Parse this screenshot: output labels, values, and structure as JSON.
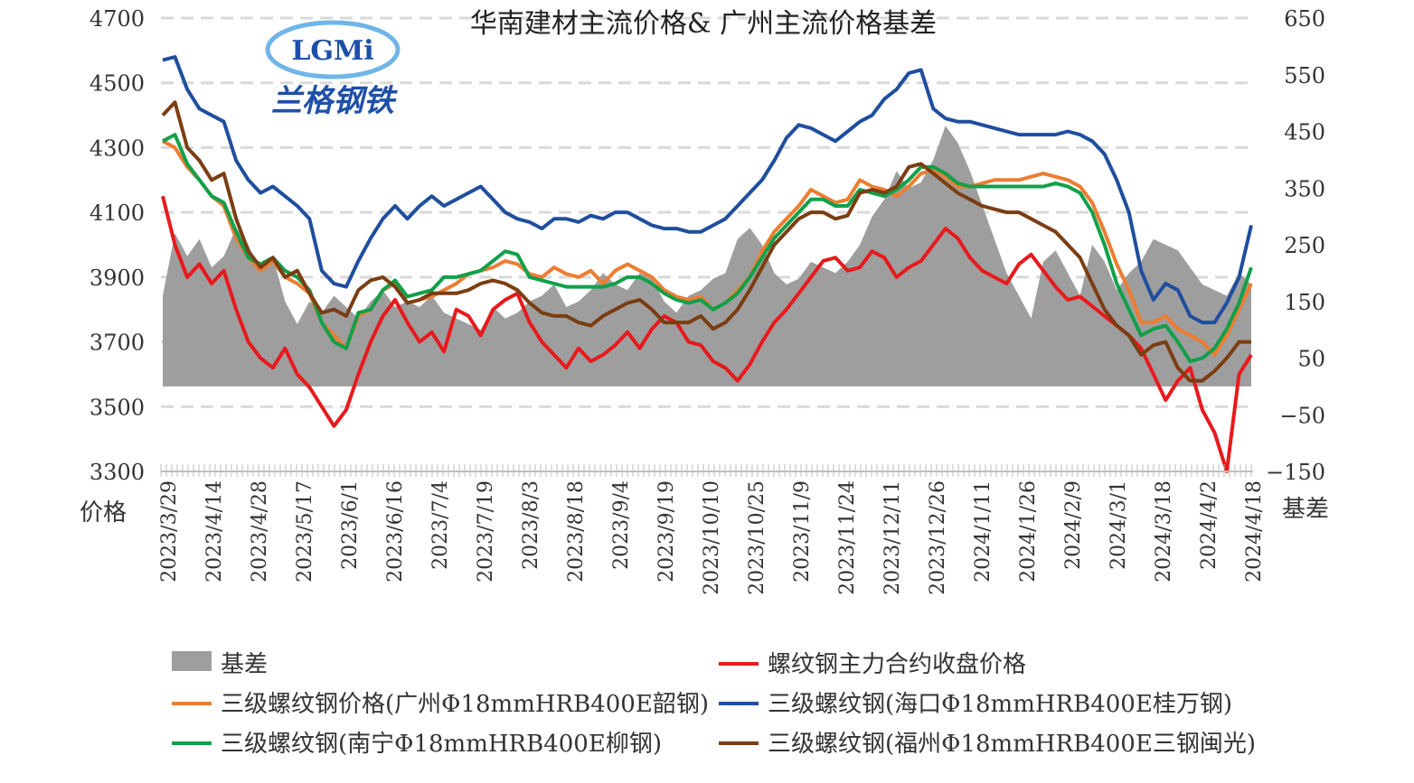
{
  "chart_data": {
    "type": "line",
    "title": "华南建材主流价格& 广州主流价格基差",
    "logo": {
      "text": "LGMi",
      "subtitle": "兰格钢铁"
    },
    "y_left": {
      "label": "价格",
      "min": 3300,
      "max": 4700,
      "ticks": [
        3300,
        3500,
        3700,
        3900,
        4100,
        4300,
        4500,
        4700
      ]
    },
    "y_right": {
      "label": "基差",
      "min": -150,
      "max": 650,
      "ticks": [
        -150,
        -50,
        50,
        150,
        250,
        350,
        450,
        550,
        650
      ],
      "tick_labels": [
        "−150",
        "−50",
        "50",
        "150",
        "250",
        "350",
        "450",
        "550",
        "650"
      ]
    },
    "x_tick_labels": [
      "2023/3/29",
      "2023/4/14",
      "2023/4/28",
      "2023/5/17",
      "2023/6/1",
      "2023/6/16",
      "2023/7/4",
      "2023/7/19",
      "2023/8/3",
      "2023/8/18",
      "2023/9/4",
      "2023/9/19",
      "2023/10/10",
      "2023/10/25",
      "2023/11/9",
      "2023/11/24",
      "2023/12/11",
      "2023/12/26",
      "2024/1/11",
      "2024/1/26",
      "2024/2/9",
      "2024/3/1",
      "2024/3/18",
      "2024/4/2",
      "2024/4/18"
    ],
    "grid": "horizontal-dashed",
    "legend_position": "bottom",
    "series": [
      {
        "name": "基差",
        "kind": "area",
        "axis": "right",
        "color": "#9e9e9e",
        "values": [
          160,
          270,
          230,
          260,
          210,
          230,
          280,
          250,
          200,
          230,
          150,
          110,
          150,
          130,
          160,
          140,
          120,
          150,
          170,
          140,
          150,
          140,
          160,
          130,
          120,
          110,
          100,
          140,
          120,
          130,
          150,
          160,
          180,
          140,
          150,
          170,
          200,
          180,
          170,
          200,
          190,
          150,
          130,
          160,
          170,
          190,
          200,
          260,
          280,
          250,
          200,
          180,
          190,
          220,
          210,
          200,
          220,
          250,
          300,
          330,
          380,
          350,
          360,
          400,
          460,
          430,
          380,
          320,
          260,
          200,
          160,
          120,
          220,
          240,
          200,
          160,
          250,
          220,
          170,
          200,
          220,
          260,
          250,
          240,
          210,
          180,
          170,
          160,
          200,
          180
        ]
      },
      {
        "name": "螺纹钢主力合约收盘价格",
        "kind": "line",
        "axis": "left",
        "color": "#e8191c",
        "values": [
          4150,
          4000,
          3900,
          3940,
          3880,
          3920,
          3800,
          3700,
          3650,
          3620,
          3680,
          3600,
          3560,
          3500,
          3440,
          3490,
          3600,
          3700,
          3780,
          3830,
          3760,
          3700,
          3730,
          3670,
          3800,
          3780,
          3720,
          3800,
          3830,
          3850,
          3760,
          3700,
          3660,
          3620,
          3680,
          3640,
          3660,
          3690,
          3730,
          3680,
          3740,
          3780,
          3760,
          3700,
          3690,
          3640,
          3620,
          3580,
          3630,
          3700,
          3760,
          3800,
          3850,
          3900,
          3950,
          3960,
          3920,
          3930,
          3980,
          3960,
          3900,
          3930,
          3950,
          4000,
          4050,
          4020,
          3960,
          3920,
          3900,
          3880,
          3940,
          3970,
          3920,
          3870,
          3830,
          3840,
          3810,
          3780,
          3750,
          3720,
          3680,
          3600,
          3520,
          3580,
          3620,
          3490,
          3420,
          3300,
          3600,
          3660
        ]
      },
      {
        "name": "三级螺纹钢价格(广州Φ18mmHRB400E韶钢)",
        "kind": "line",
        "axis": "left",
        "color": "#ed7d31",
        "values": [
          4320,
          4300,
          4240,
          4200,
          4150,
          4120,
          4020,
          3960,
          3920,
          3950,
          3900,
          3880,
          3850,
          3760,
          3720,
          3680,
          3780,
          3800,
          3860,
          3880,
          3820,
          3830,
          3840,
          3860,
          3880,
          3910,
          3920,
          3930,
          3950,
          3940,
          3910,
          3900,
          3930,
          3910,
          3900,
          3920,
          3880,
          3920,
          3940,
          3920,
          3900,
          3860,
          3840,
          3830,
          3840,
          3800,
          3820,
          3860,
          3900,
          3980,
          4040,
          4080,
          4120,
          4170,
          4150,
          4130,
          4140,
          4200,
          4180,
          4170,
          4150,
          4180,
          4220,
          4230,
          4210,
          4180,
          4180,
          4190,
          4200,
          4200,
          4200,
          4210,
          4220,
          4210,
          4200,
          4180,
          4130,
          4040,
          3940,
          3860,
          3760,
          3760,
          3780,
          3740,
          3720,
          3700,
          3660,
          3720,
          3800,
          3880
        ]
      },
      {
        "name": "三级螺纹钢(海口Φ18mmHRB400E桂万钢)",
        "kind": "line",
        "axis": "left",
        "color": "#1f4e9f",
        "values": [
          4570,
          4580,
          4480,
          4420,
          4400,
          4380,
          4260,
          4200,
          4160,
          4180,
          4150,
          4120,
          4080,
          3920,
          3880,
          3870,
          3950,
          4020,
          4080,
          4120,
          4080,
          4120,
          4150,
          4120,
          4140,
          4160,
          4180,
          4140,
          4100,
          4080,
          4070,
          4050,
          4080,
          4080,
          4070,
          4090,
          4080,
          4100,
          4100,
          4080,
          4060,
          4050,
          4050,
          4040,
          4040,
          4060,
          4080,
          4120,
          4160,
          4200,
          4260,
          4330,
          4370,
          4360,
          4340,
          4320,
          4350,
          4380,
          4400,
          4450,
          4480,
          4530,
          4540,
          4420,
          4390,
          4380,
          4380,
          4370,
          4360,
          4350,
          4340,
          4340,
          4340,
          4340,
          4350,
          4340,
          4320,
          4280,
          4200,
          4100,
          3920,
          3830,
          3880,
          3860,
          3780,
          3760,
          3760,
          3820,
          3900,
          4060
        ]
      },
      {
        "name": "三级螺纹钢(南宁Φ18mmHRB400E柳钢)",
        "kind": "line",
        "axis": "left",
        "color": "#11a04a",
        "values": [
          4320,
          4340,
          4250,
          4200,
          4150,
          4130,
          4040,
          3960,
          3940,
          3960,
          3920,
          3900,
          3860,
          3760,
          3700,
          3680,
          3790,
          3800,
          3860,
          3890,
          3840,
          3850,
          3860,
          3900,
          3900,
          3910,
          3920,
          3950,
          3980,
          3970,
          3900,
          3890,
          3880,
          3870,
          3870,
          3870,
          3870,
          3880,
          3900,
          3900,
          3880,
          3850,
          3830,
          3820,
          3830,
          3800,
          3820,
          3850,
          3900,
          3960,
          4020,
          4060,
          4100,
          4140,
          4140,
          4120,
          4120,
          4170,
          4160,
          4150,
          4170,
          4200,
          4240,
          4240,
          4220,
          4190,
          4180,
          4180,
          4180,
          4180,
          4180,
          4180,
          4180,
          4190,
          4180,
          4160,
          4100,
          4000,
          3880,
          3800,
          3720,
          3740,
          3750,
          3700,
          3640,
          3650,
          3680,
          3740,
          3820,
          3930
        ]
      },
      {
        "name": "三级螺纹钢(福州Φ18mmHRB400E三钢闽光)",
        "kind": "line",
        "axis": "left",
        "color": "#7b3d12",
        "values": [
          4400,
          4440,
          4300,
          4260,
          4200,
          4220,
          4080,
          3980,
          3930,
          3960,
          3900,
          3920,
          3850,
          3790,
          3800,
          3780,
          3860,
          3890,
          3900,
          3870,
          3820,
          3830,
          3850,
          3850,
          3850,
          3860,
          3880,
          3890,
          3880,
          3860,
          3820,
          3790,
          3780,
          3780,
          3760,
          3750,
          3780,
          3800,
          3820,
          3830,
          3800,
          3760,
          3760,
          3760,
          3780,
          3740,
          3760,
          3800,
          3860,
          3930,
          4000,
          4040,
          4080,
          4100,
          4100,
          4080,
          4090,
          4160,
          4170,
          4160,
          4180,
          4240,
          4250,
          4220,
          4190,
          4160,
          4140,
          4120,
          4110,
          4100,
          4100,
          4080,
          4060,
          4040,
          4000,
          3960,
          3880,
          3800,
          3750,
          3720,
          3660,
          3690,
          3700,
          3620,
          3580,
          3580,
          3610,
          3650,
          3700,
          3700
        ]
      }
    ],
    "legend": [
      {
        "label": "基差",
        "series": 0
      },
      {
        "label": "螺纹钢主力合约收盘价格",
        "series": 1
      },
      {
        "label": "三级螺纹钢价格(广州Φ18mmHRB400E韶钢)",
        "series": 2
      },
      {
        "label": "三级螺纹钢(海口Φ18mmHRB400E桂万钢)",
        "series": 3
      },
      {
        "label": "三级螺纹钢(南宁Φ18mmHRB400E柳钢)",
        "series": 4
      },
      {
        "label": "三级螺纹钢(福州Φ18mmHRB400E三钢闽光)",
        "series": 5
      }
    ]
  }
}
